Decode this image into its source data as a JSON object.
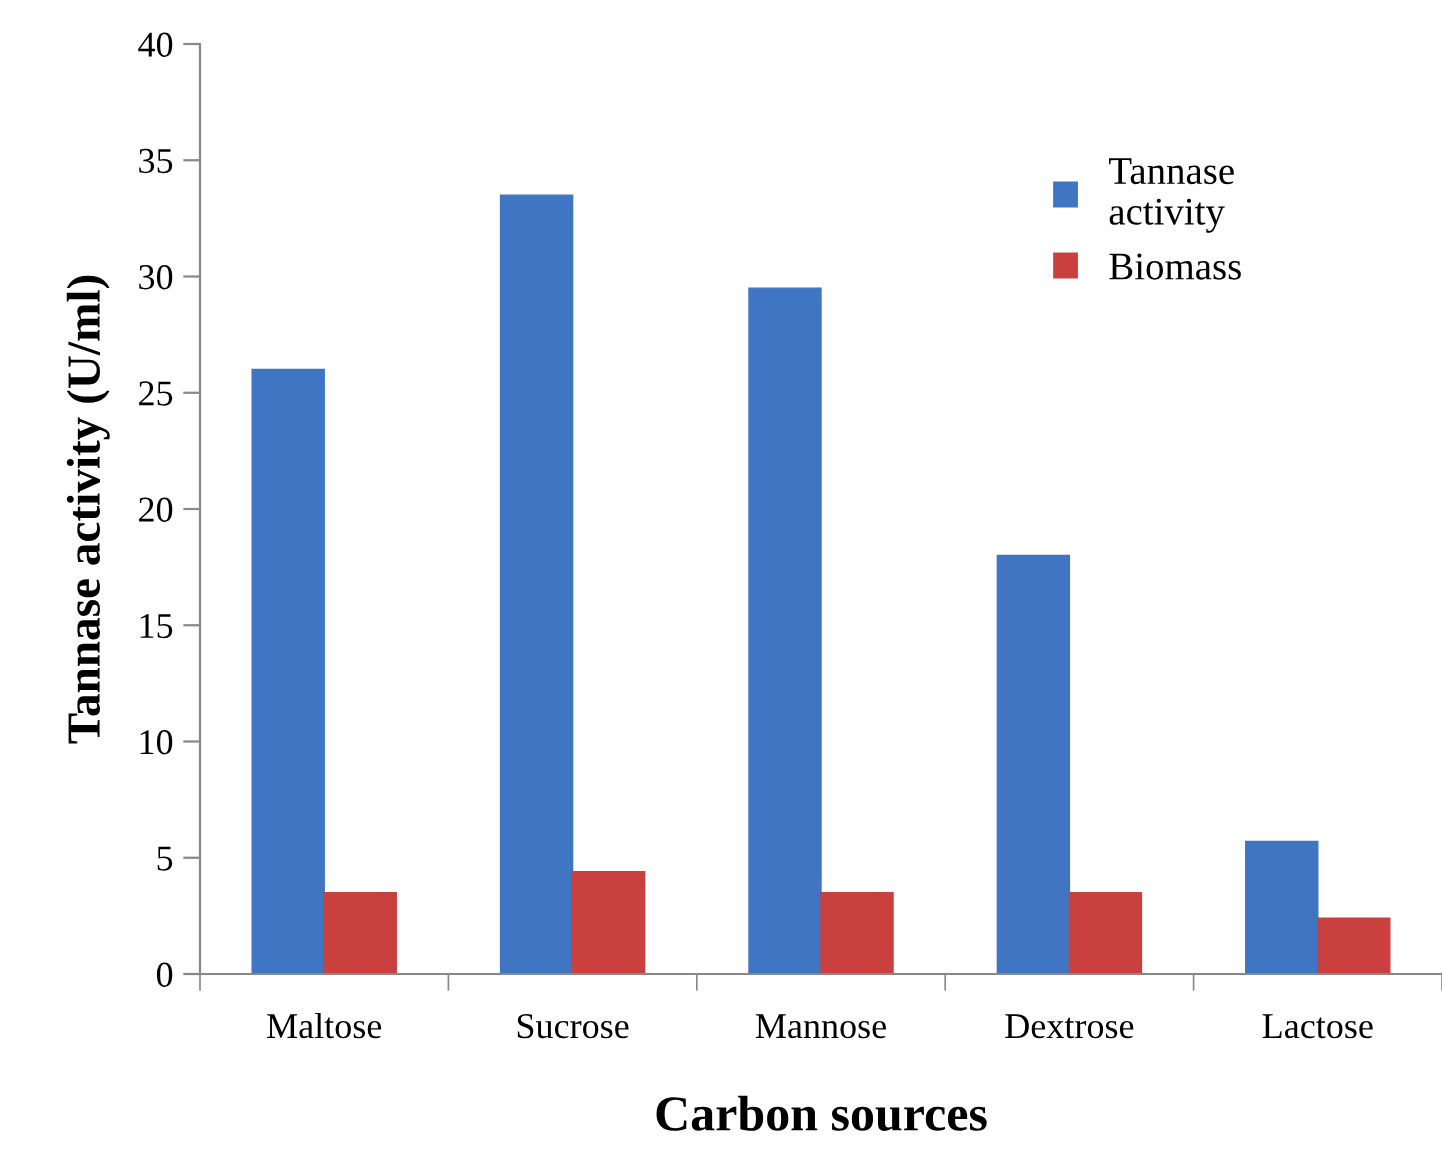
{
  "chart_data": {
    "type": "bar",
    "xlabel": "Carbon sources",
    "ylabel": "Tannase activity (U/ml)",
    "categories": [
      "Maltose",
      "Sucrose",
      "Mannose",
      "Dextrose",
      "Lactose"
    ],
    "series": [
      {
        "name": "Tannase\nactivity",
        "color": "#3f75c2",
        "values": [
          26,
          33.5,
          29.5,
          18,
          5.7
        ]
      },
      {
        "name": "Biomass",
        "color": "#c9403e",
        "values": [
          3.5,
          4.4,
          3.5,
          3.5,
          2.4
        ]
      }
    ],
    "ylim": [
      0,
      40
    ],
    "yticks": [
      0,
      5,
      10,
      15,
      20,
      25,
      30,
      35,
      40
    ],
    "grid": false,
    "legend": "top right"
  }
}
